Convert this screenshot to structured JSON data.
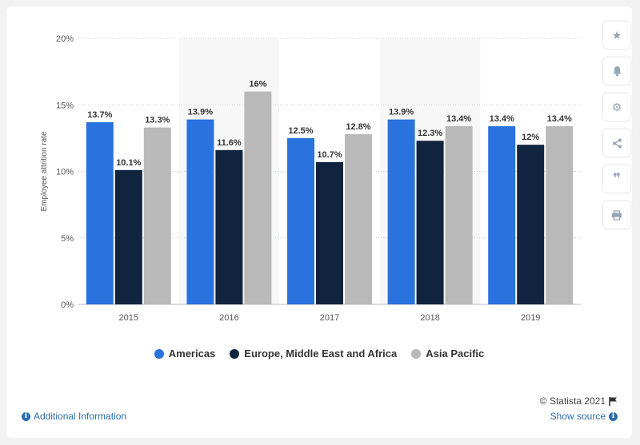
{
  "chart_data": {
    "type": "bar",
    "categories": [
      "2015",
      "2016",
      "2017",
      "2018",
      "2019"
    ],
    "series": [
      {
        "name": "Americas",
        "color": "#2a72de",
        "values": [
          13.7,
          13.9,
          12.5,
          13.9,
          13.4
        ],
        "labels": [
          "13.7%",
          "13.9%",
          "12.5%",
          "13.9%",
          "13.4%"
        ]
      },
      {
        "name": "Europe, Middle East and Africa",
        "color": "#10243f",
        "values": [
          10.1,
          11.6,
          10.7,
          12.3,
          12.0
        ],
        "labels": [
          "10.1%",
          "11.6%",
          "10.7%",
          "12.3%",
          "12%"
        ]
      },
      {
        "name": "Asia Pacific",
        "color": "#b9b9b9",
        "values": [
          13.3,
          16.0,
          12.8,
          13.4,
          13.4
        ],
        "labels": [
          "13.3%",
          "16%",
          "12.8%",
          "13.4%",
          "13.4%"
        ]
      }
    ],
    "ylabel": "Employee attrition rate",
    "xlabel": "",
    "ylim": [
      0,
      20
    ],
    "yticks": [
      0,
      5,
      10,
      15,
      20
    ],
    "ytick_labels": [
      "0%",
      "5%",
      "10%",
      "15%",
      "20%"
    ],
    "grid": true,
    "legend_position": "bottom"
  },
  "footer": {
    "credits": "© Statista 2021",
    "additional_info": "Additional Information",
    "show_source": "Show source"
  },
  "toolbar": {
    "icons": [
      "star-icon",
      "bell-icon",
      "gear-icon",
      "share-icon",
      "quote-icon",
      "print-icon"
    ]
  }
}
